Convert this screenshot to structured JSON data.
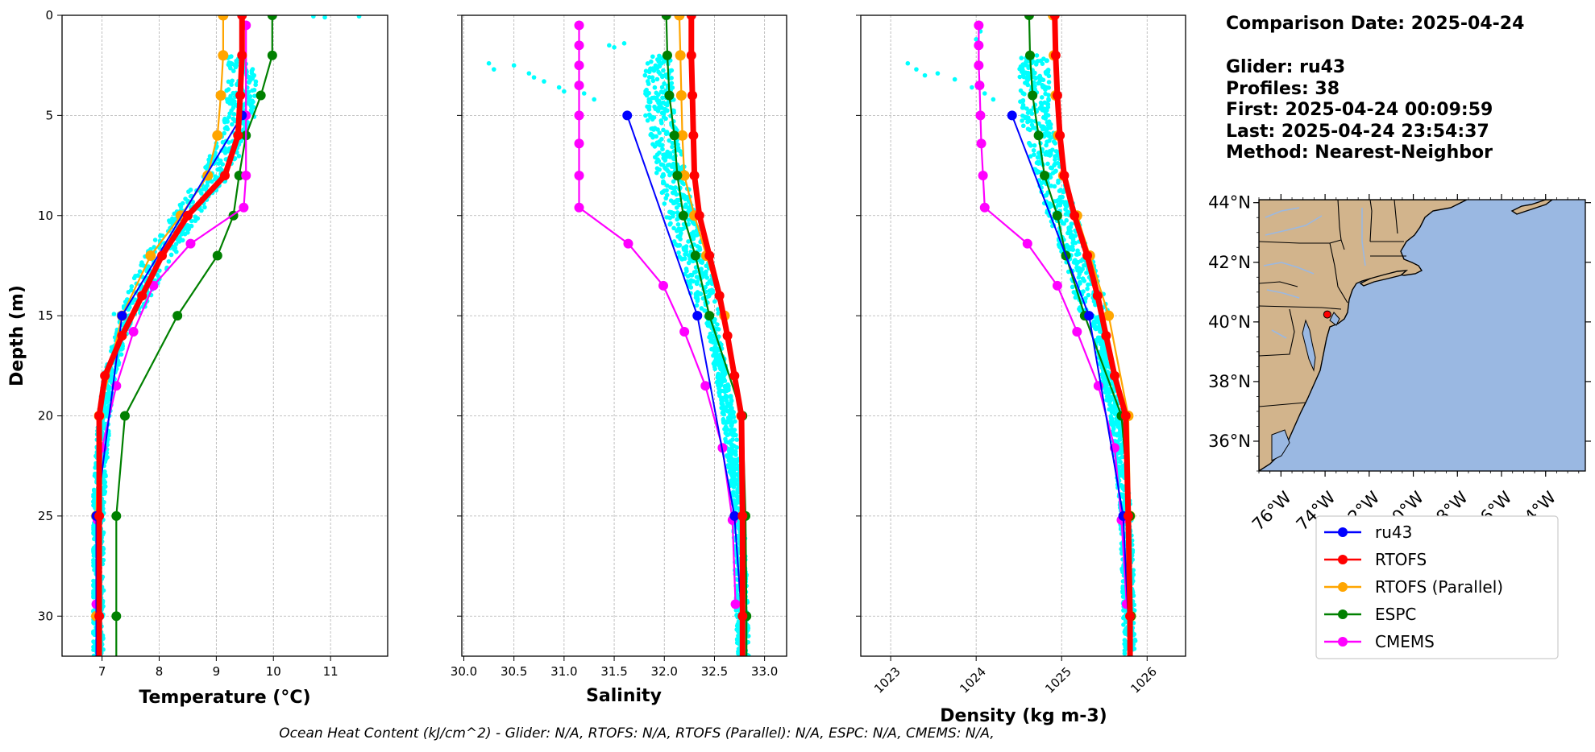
{
  "info": {
    "lines": [
      "Comparison Date: 2025-04-24",
      "",
      "Glider: ru43",
      "Profiles: 38",
      "First: 2025-04-24 00:09:59",
      "Last: 2025-04-24 23:54:37",
      "Method: Nearest-Neighbor"
    ]
  },
  "footer": "Ocean Heat Content (kJ/cm^2) - Glider: N/A,  RTOFS: N/A,  RTOFS (Parallel): N/A,  ESPC: N/A,  CMEMS: N/A,",
  "colors": {
    "ru43": "#0000ff",
    "RTOFS": "#ff0000",
    "RTOFS (Parallel)": "#ffa500",
    "ESPC": "#008000",
    "CMEMS": "#ff00ff",
    "glider_scatter": "#00ffff",
    "land": "#d2b48c",
    "ocean": "#9ab8e2"
  },
  "legend": {
    "entries": [
      "ru43",
      "RTOFS",
      "RTOFS (Parallel)",
      "ESPC",
      "CMEMS"
    ],
    "placement": "below map"
  },
  "chart_data": [
    {
      "type": "line",
      "name": "temperature",
      "xlabel": "Temperature (°C)",
      "ylabel": "Depth (m)",
      "xlim": [
        6.3,
        12.0
      ],
      "ylim": [
        32,
        0
      ],
      "xticks": [
        "7",
        "8",
        "9",
        "10",
        "11"
      ],
      "xtick_values": [
        7,
        8,
        9,
        10,
        11
      ],
      "yticks": [
        "0",
        "5",
        "10",
        "15",
        "20",
        "25",
        "30"
      ],
      "ytick_values": [
        0,
        5,
        10,
        15,
        20,
        25,
        30
      ],
      "grid": true,
      "series": [
        {
          "name": "ru43",
          "depth": [
            5,
            15,
            25,
            32
          ],
          "values": [
            9.45,
            7.35,
            6.9,
            6.9
          ]
        },
        {
          "name": "RTOFS",
          "depth": [
            0,
            2,
            4,
            6,
            8,
            10,
            12,
            14,
            16,
            18,
            20,
            25,
            30,
            32
          ],
          "values": [
            9.45,
            9.45,
            9.42,
            9.38,
            9.15,
            8.5,
            8.05,
            7.7,
            7.35,
            7.05,
            6.95,
            6.95,
            6.95,
            6.95
          ]
        },
        {
          "name": "RTOFS (Parallel)",
          "depth": [
            0,
            2,
            4,
            6,
            8,
            10,
            12,
            15,
            20,
            25,
            30
          ],
          "values": [
            9.12,
            9.12,
            9.08,
            9.02,
            8.85,
            8.38,
            7.85,
            7.35,
            6.95,
            6.9,
            6.9
          ]
        },
        {
          "name": "ESPC",
          "depth": [
            0,
            2,
            4,
            6,
            8,
            10,
            12,
            15,
            20,
            25,
            30,
            32
          ],
          "values": [
            9.98,
            9.98,
            9.78,
            9.52,
            9.4,
            9.3,
            9.02,
            8.32,
            7.4,
            7.25,
            7.25,
            7.25
          ]
        },
        {
          "name": "CMEMS",
          "depth": [
            0.5,
            5,
            8,
            9.6,
            11.4,
            13.5,
            15.8,
            18.5,
            21.6,
            25.2,
            29.4
          ],
          "values": [
            9.52,
            9.52,
            9.52,
            9.48,
            8.55,
            7.9,
            7.55,
            7.25,
            7.0,
            6.92,
            6.9
          ]
        }
      ],
      "scatter": {
        "name": "glider",
        "x_range": [
          6.85,
          10.6
        ],
        "depth_range": [
          2,
          32
        ],
        "extra": [
          [
            10.7,
            0.05
          ],
          [
            11.5,
            0.05
          ],
          [
            10.9,
            0.1
          ]
        ]
      }
    },
    {
      "type": "line",
      "name": "salinity",
      "xlabel": "Salinity",
      "xlim": [
        29.98,
        33.22
      ],
      "ylim": [
        32,
        0
      ],
      "xticks": [
        "30.0",
        "30.5",
        "31.0",
        "31.5",
        "32.0",
        "32.5",
        "33.0"
      ],
      "xtick_values": [
        30.0,
        30.5,
        31.0,
        31.5,
        32.0,
        32.5,
        33.0
      ],
      "grid": true,
      "series": [
        {
          "name": "ru43",
          "depth": [
            5,
            15,
            25,
            32
          ],
          "values": [
            31.63,
            32.33,
            32.7,
            32.8
          ]
        },
        {
          "name": "RTOFS",
          "depth": [
            0,
            2,
            4,
            6,
            8,
            10,
            12,
            14,
            16,
            18,
            20,
            25,
            30,
            32
          ],
          "values": [
            32.27,
            32.27,
            32.28,
            32.29,
            32.3,
            32.35,
            32.45,
            32.55,
            32.63,
            32.7,
            32.77,
            32.78,
            32.78,
            32.78
          ]
        },
        {
          "name": "RTOFS (Parallel)",
          "depth": [
            0,
            2,
            4,
            6,
            8,
            10,
            12,
            15,
            20,
            25,
            30
          ],
          "values": [
            32.15,
            32.16,
            32.17,
            32.18,
            32.2,
            32.3,
            32.42,
            32.6,
            32.77,
            32.78,
            32.79
          ]
        },
        {
          "name": "ESPC",
          "depth": [
            0,
            2,
            4,
            6,
            8,
            10,
            12,
            15,
            20,
            25,
            30,
            32
          ],
          "values": [
            32.02,
            32.03,
            32.05,
            32.1,
            32.13,
            32.19,
            32.31,
            32.45,
            32.78,
            32.81,
            32.82,
            32.82
          ]
        },
        {
          "name": "CMEMS",
          "depth": [
            0.5,
            1.5,
            2.5,
            3.5,
            5,
            6.4,
            8,
            9.6,
            11.4,
            13.5,
            15.8,
            18.5,
            21.6,
            25.2,
            29.4
          ],
          "values": [
            31.15,
            31.15,
            31.15,
            31.15,
            31.15,
            31.15,
            31.15,
            31.15,
            31.64,
            31.99,
            32.2,
            32.41,
            32.58,
            32.68,
            32.71
          ]
        }
      ],
      "scatter": {
        "name": "glider",
        "x_range": [
          31.5,
          32.95
        ],
        "depth_range": [
          2,
          32
        ],
        "extra": [
          [
            30.25,
            2.4
          ],
          [
            30.3,
            2.7
          ],
          [
            30.5,
            2.5
          ],
          [
            30.65,
            2.9
          ],
          [
            30.8,
            3.3
          ],
          [
            30.95,
            3.6
          ],
          [
            31.2,
            3.9
          ],
          [
            31.3,
            4.2
          ],
          [
            30.7,
            3.1
          ],
          [
            31.0,
            3.8
          ],
          [
            31.45,
            1.5
          ],
          [
            31.5,
            1.6
          ],
          [
            31.6,
            1.4
          ]
        ]
      }
    },
    {
      "type": "line",
      "name": "density",
      "xlabel": "Density (kg m-3)",
      "xlim": [
        1022.65,
        1026.45
      ],
      "ylim": [
        32,
        0
      ],
      "xticks": [
        "1023",
        "1024",
        "1025",
        "1026"
      ],
      "xtick_values": [
        1023,
        1024,
        1025,
        1026
      ],
      "grid": true,
      "series": [
        {
          "name": "ru43",
          "depth": [
            5,
            15,
            25,
            32
          ],
          "values": [
            1024.42,
            1025.32,
            1025.72,
            1025.8
          ]
        },
        {
          "name": "RTOFS",
          "depth": [
            0,
            2,
            4,
            6,
            8,
            10,
            12,
            14,
            16,
            18,
            20,
            25,
            30,
            32
          ],
          "values": [
            1024.92,
            1024.93,
            1024.95,
            1024.98,
            1025.03,
            1025.15,
            1025.3,
            1025.42,
            1025.52,
            1025.62,
            1025.75,
            1025.78,
            1025.8,
            1025.8
          ]
        },
        {
          "name": "RTOFS (Parallel)",
          "depth": [
            0,
            2,
            4,
            6,
            8,
            10,
            12,
            15,
            20,
            25,
            30
          ],
          "values": [
            1024.9,
            1024.91,
            1024.93,
            1024.96,
            1025.02,
            1025.18,
            1025.33,
            1025.55,
            1025.78,
            1025.8,
            1025.81
          ]
        },
        {
          "name": "ESPC",
          "depth": [
            0,
            2,
            4,
            6,
            8,
            10,
            12,
            15,
            20,
            25,
            30,
            32
          ],
          "values": [
            1024.62,
            1024.63,
            1024.66,
            1024.73,
            1024.8,
            1024.95,
            1025.05,
            1025.27,
            1025.7,
            1025.8,
            1025.81,
            1025.81
          ]
        },
        {
          "name": "CMEMS",
          "depth": [
            0.5,
            1.5,
            2.5,
            3.5,
            5,
            6.4,
            8,
            9.6,
            11.4,
            13.5,
            15.8,
            18.5,
            21.6,
            25.2,
            29.4
          ],
          "values": [
            1024.03,
            1024.03,
            1024.03,
            1024.04,
            1024.05,
            1024.06,
            1024.08,
            1024.1,
            1024.6,
            1024.95,
            1025.18,
            1025.43,
            1025.62,
            1025.7,
            1025.76
          ]
        }
      ],
      "scatter": {
        "name": "glider",
        "x_range": [
          1024.35,
          1025.95
        ],
        "depth_range": [
          2,
          32
        ],
        "extra": [
          [
            1023.2,
            2.4
          ],
          [
            1023.3,
            2.7
          ],
          [
            1023.55,
            2.9
          ],
          [
            1023.75,
            3.2
          ],
          [
            1023.95,
            3.6
          ],
          [
            1024.1,
            3.9
          ],
          [
            1024.2,
            4.2
          ],
          [
            1023.4,
            3.0
          ],
          [
            1024.0,
            1.2
          ],
          [
            1024.05,
            0.8
          ]
        ]
      }
    }
  ],
  "map": {
    "lat_ticks": [
      "44°N",
      "42°N",
      "40°N",
      "38°N",
      "36°N"
    ],
    "lat_values": [
      44,
      42,
      40,
      38,
      36
    ],
    "lon_ticks": [
      "76°W",
      "74°W",
      "72°W",
      "70°W",
      "68°W",
      "66°W",
      "64°W"
    ],
    "lon_values": [
      -76,
      -74,
      -72,
      -70,
      -68,
      -66,
      -64
    ],
    "lon_range": [
      -77,
      -62.2
    ],
    "lat_range": [
      35,
      44.1
    ],
    "glider_position": {
      "lon": -73.9,
      "lat": 40.25
    }
  }
}
